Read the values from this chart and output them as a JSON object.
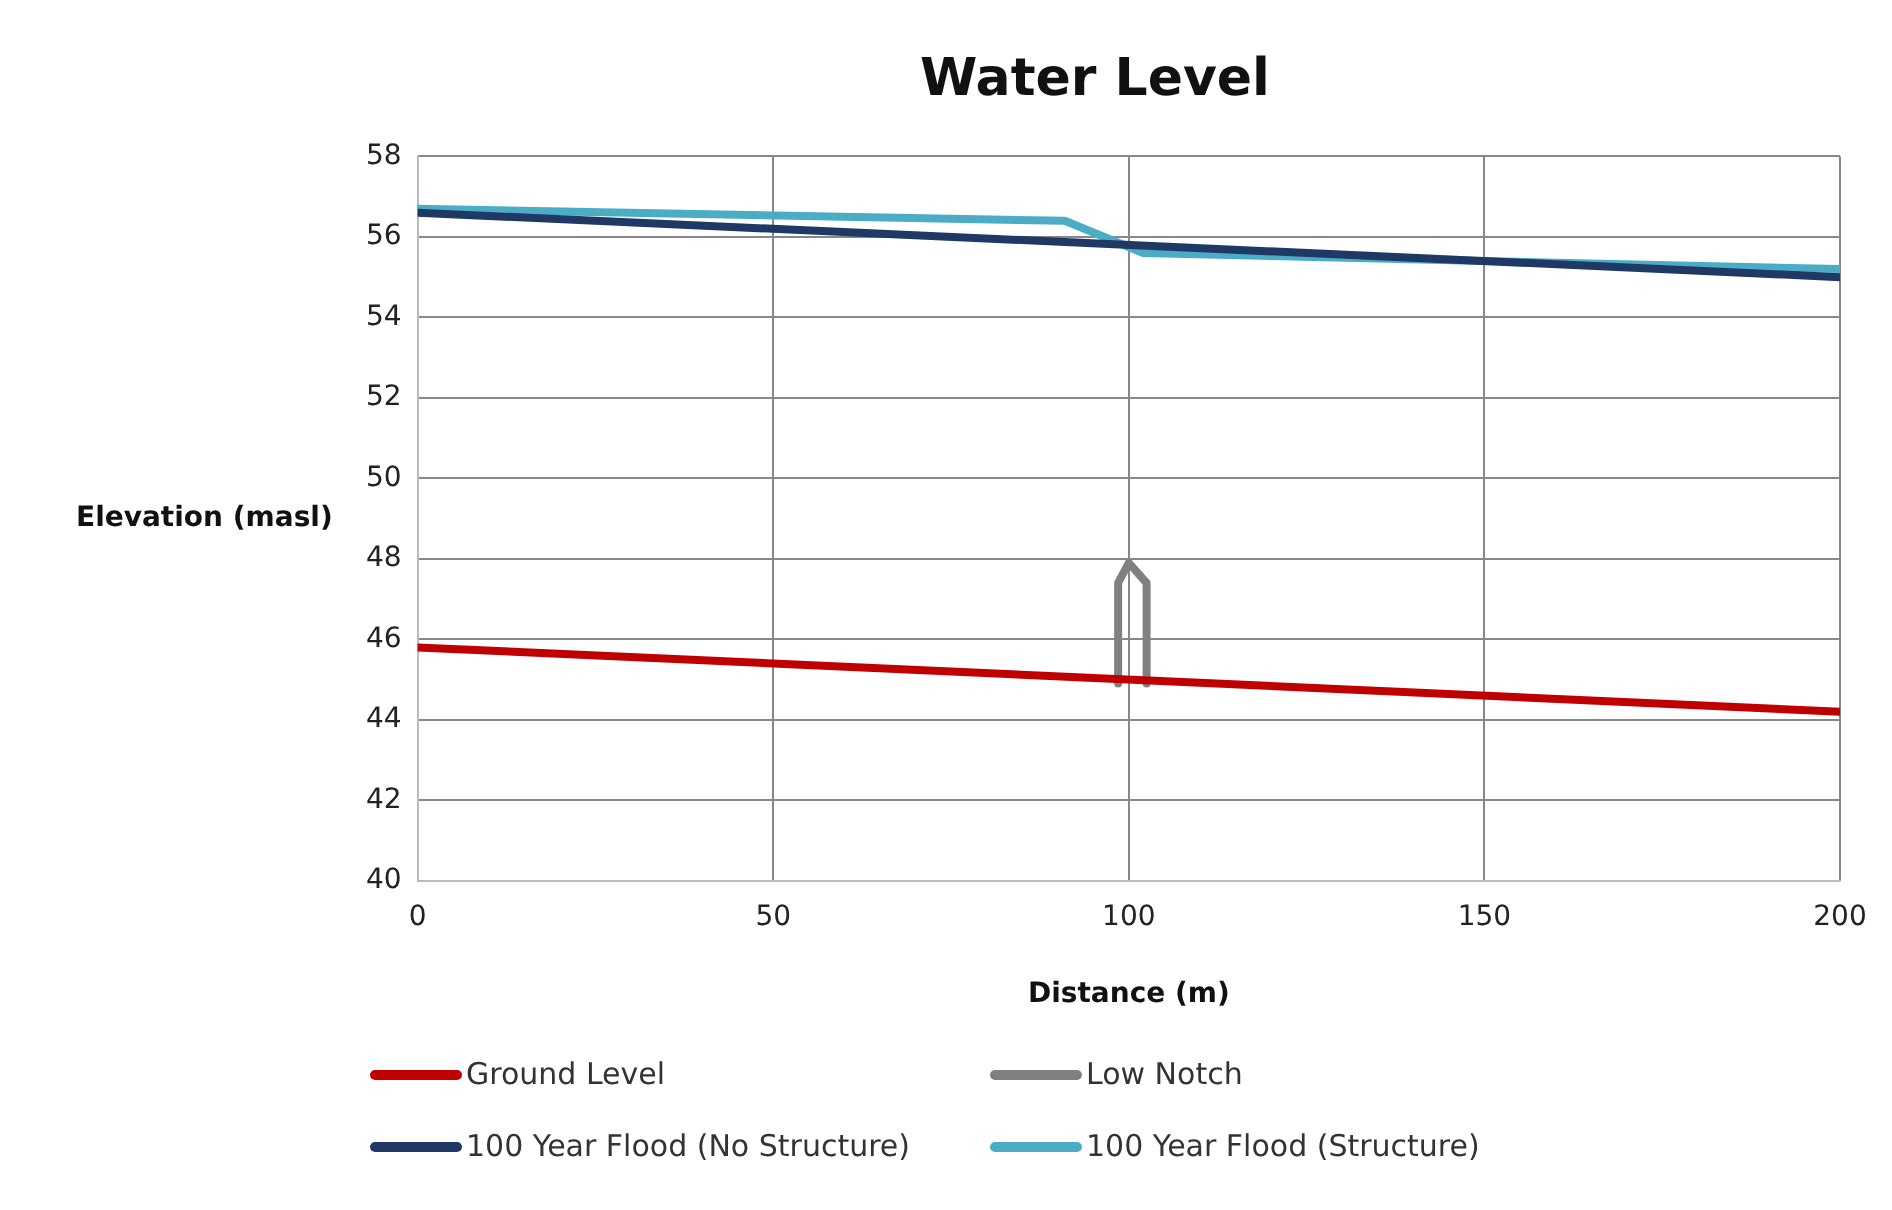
{
  "chart_data": {
    "type": "line",
    "title": "Water Level",
    "xlabel": "Distance (m)",
    "ylabel": "Elevation (masl)",
    "xlim": [
      0,
      200
    ],
    "xticks": [
      0,
      50,
      100,
      150,
      200
    ],
    "ylim": [
      40,
      58
    ],
    "yticks": [
      40,
      42,
      44,
      46,
      48,
      50,
      52,
      54,
      56,
      58
    ],
    "grid": true,
    "legend": "bottom",
    "marker": "none",
    "line_style": "solid",
    "series": [
      {
        "name": "Ground Level",
        "color": "#c00000",
        "x": [
          0,
          200
        ],
        "values": [
          45.8,
          44.2
        ]
      },
      {
        "name": "Low Notch",
        "color": "#808080",
        "x": [
          98.5,
          98.5,
          100,
          102.5,
          102.5
        ],
        "values": [
          44.9,
          47.4,
          47.9,
          47.4,
          44.9
        ]
      },
      {
        "name": "100 Year Flood (No Structure)",
        "color": "#1f3864",
        "x": [
          0,
          200
        ],
        "values": [
          56.6,
          55.0
        ]
      },
      {
        "name": "100 Year Flood (Structure)",
        "color": "#4bacc6",
        "x": [
          0,
          91,
          102,
          150,
          200
        ],
        "values": [
          56.7,
          56.4,
          55.6,
          55.4,
          55.2
        ]
      }
    ]
  }
}
